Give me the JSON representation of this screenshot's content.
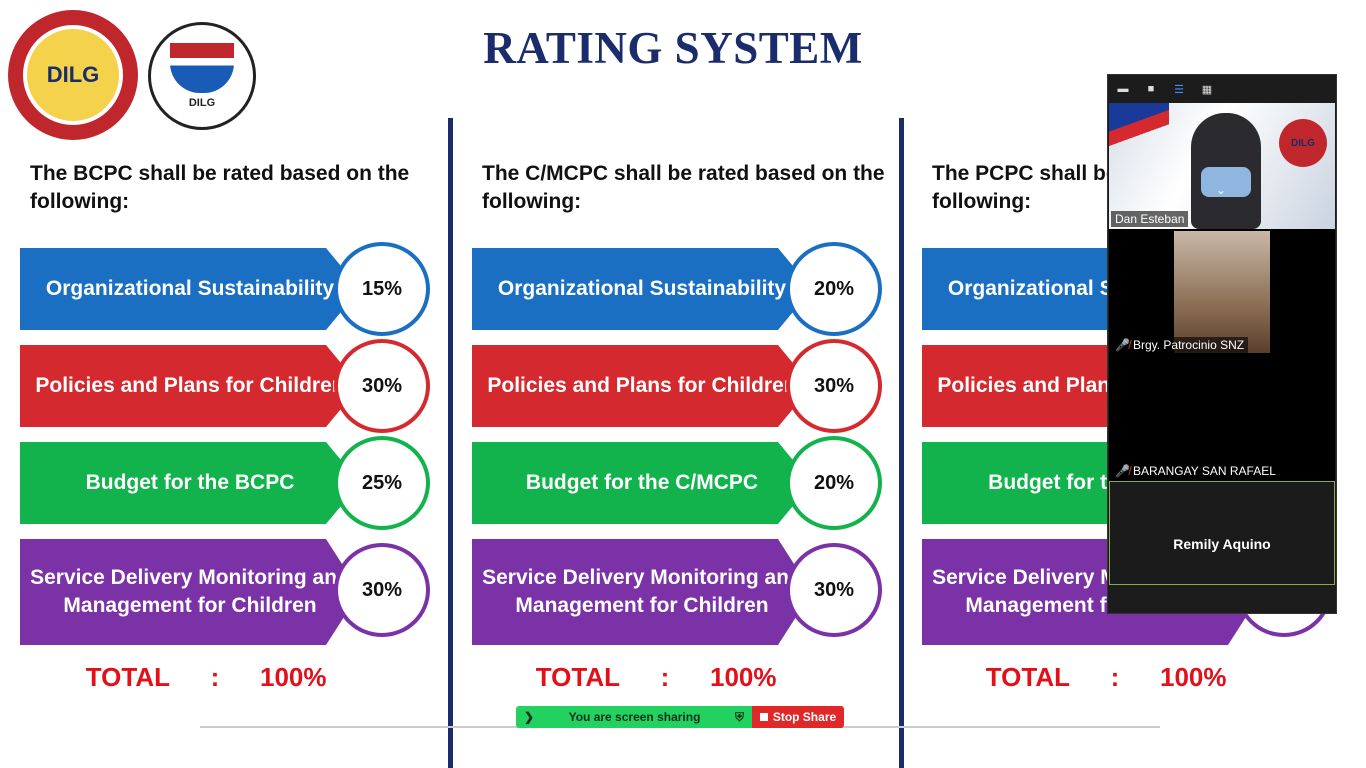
{
  "slide": {
    "title": "RATING SYSTEM",
    "logos": {
      "dilg": "DILG",
      "nbo": "DILG"
    },
    "columns": [
      {
        "heading": "The BCPC shall be rated based on the following:",
        "rows": [
          {
            "label": "Organizational Sustainability",
            "value": "15%",
            "color": "#1b6fc2"
          },
          {
            "label": "Policies and Plans for Children",
            "value": "30%",
            "color": "#d42a2f"
          },
          {
            "label": "Budget for the BCPC",
            "value": "25%",
            "color": "#12b24c"
          },
          {
            "label": "Service Delivery Monitoring and Management for Children",
            "value": "30%",
            "color": "#7a32a6"
          }
        ],
        "total_label": "TOTAL",
        "total_sep": ":",
        "total_value": "100%"
      },
      {
        "heading": "The C/MCPC shall be rated based on the following:",
        "rows": [
          {
            "label": "Organizational Sustainability",
            "value": "20%",
            "color": "#1b6fc2"
          },
          {
            "label": "Policies and Plans for Children",
            "value": "30%",
            "color": "#d42a2f"
          },
          {
            "label": "Budget for the C/MCPC",
            "value": "20%",
            "color": "#12b24c"
          },
          {
            "label": "Service Delivery Monitoring and Management for Children",
            "value": "30%",
            "color": "#7a32a6"
          }
        ],
        "total_label": "TOTAL",
        "total_sep": ":",
        "total_value": "100%"
      },
      {
        "heading": "The PCPC shall be rated based on the following:",
        "rows": [
          {
            "label": "Organizational Sustainability",
            "value": "",
            "color": "#1b6fc2"
          },
          {
            "label": "Policies and Plans for Children",
            "value": "",
            "color": "#d42a2f"
          },
          {
            "label": "Budget for the PCPC",
            "value": "",
            "color": "#12b24c"
          },
          {
            "label": "Service Delivery Monitoring and Management for Children",
            "value": "",
            "color": "#7a32a6"
          }
        ],
        "total_label": "TOTAL",
        "total_sep": ":",
        "total_value": "100%"
      }
    ]
  },
  "zoom": {
    "participants": [
      {
        "name": "Dan Esteban",
        "muted": false,
        "badge": "DILG"
      },
      {
        "name": "Brgy. Patrocinio SNZ",
        "muted": true
      },
      {
        "name": "BARANGAY SAN RAFAEL",
        "muted": true
      },
      {
        "name": "Remily Aquino",
        "muted": true,
        "display": "Remily Aquino"
      }
    ]
  },
  "share_bar": {
    "status": "You are screen sharing",
    "stop_label": "Stop Share"
  }
}
